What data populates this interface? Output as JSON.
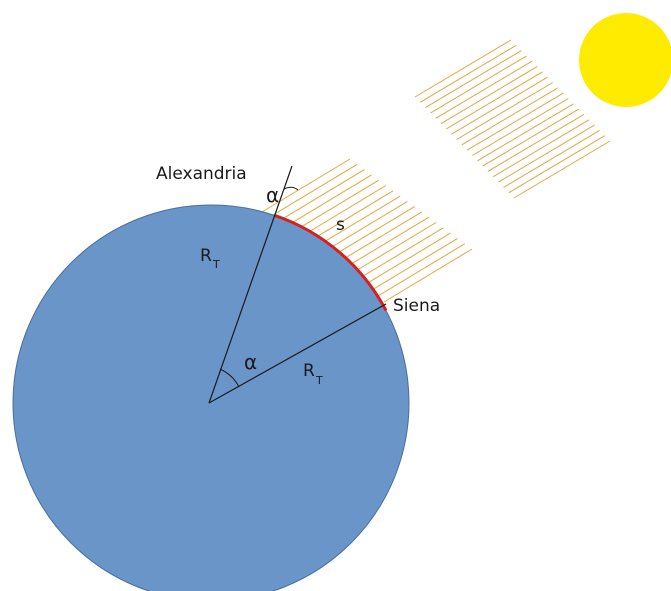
{
  "labels": {
    "city_north": "Alexandria",
    "city_south": "Siena",
    "angle_symbol": "α",
    "arc_symbol": "s",
    "radius_symbol": "R",
    "radius_subscript": "T"
  },
  "colors": {
    "earth_fill": "#6a95c8",
    "earth_stroke": "#4a6f9a",
    "sun_fill": "#ffeb00",
    "ray_color": "#e8a43c",
    "arc_color": "#d62020",
    "line_color": "#1a1a1a"
  }
}
